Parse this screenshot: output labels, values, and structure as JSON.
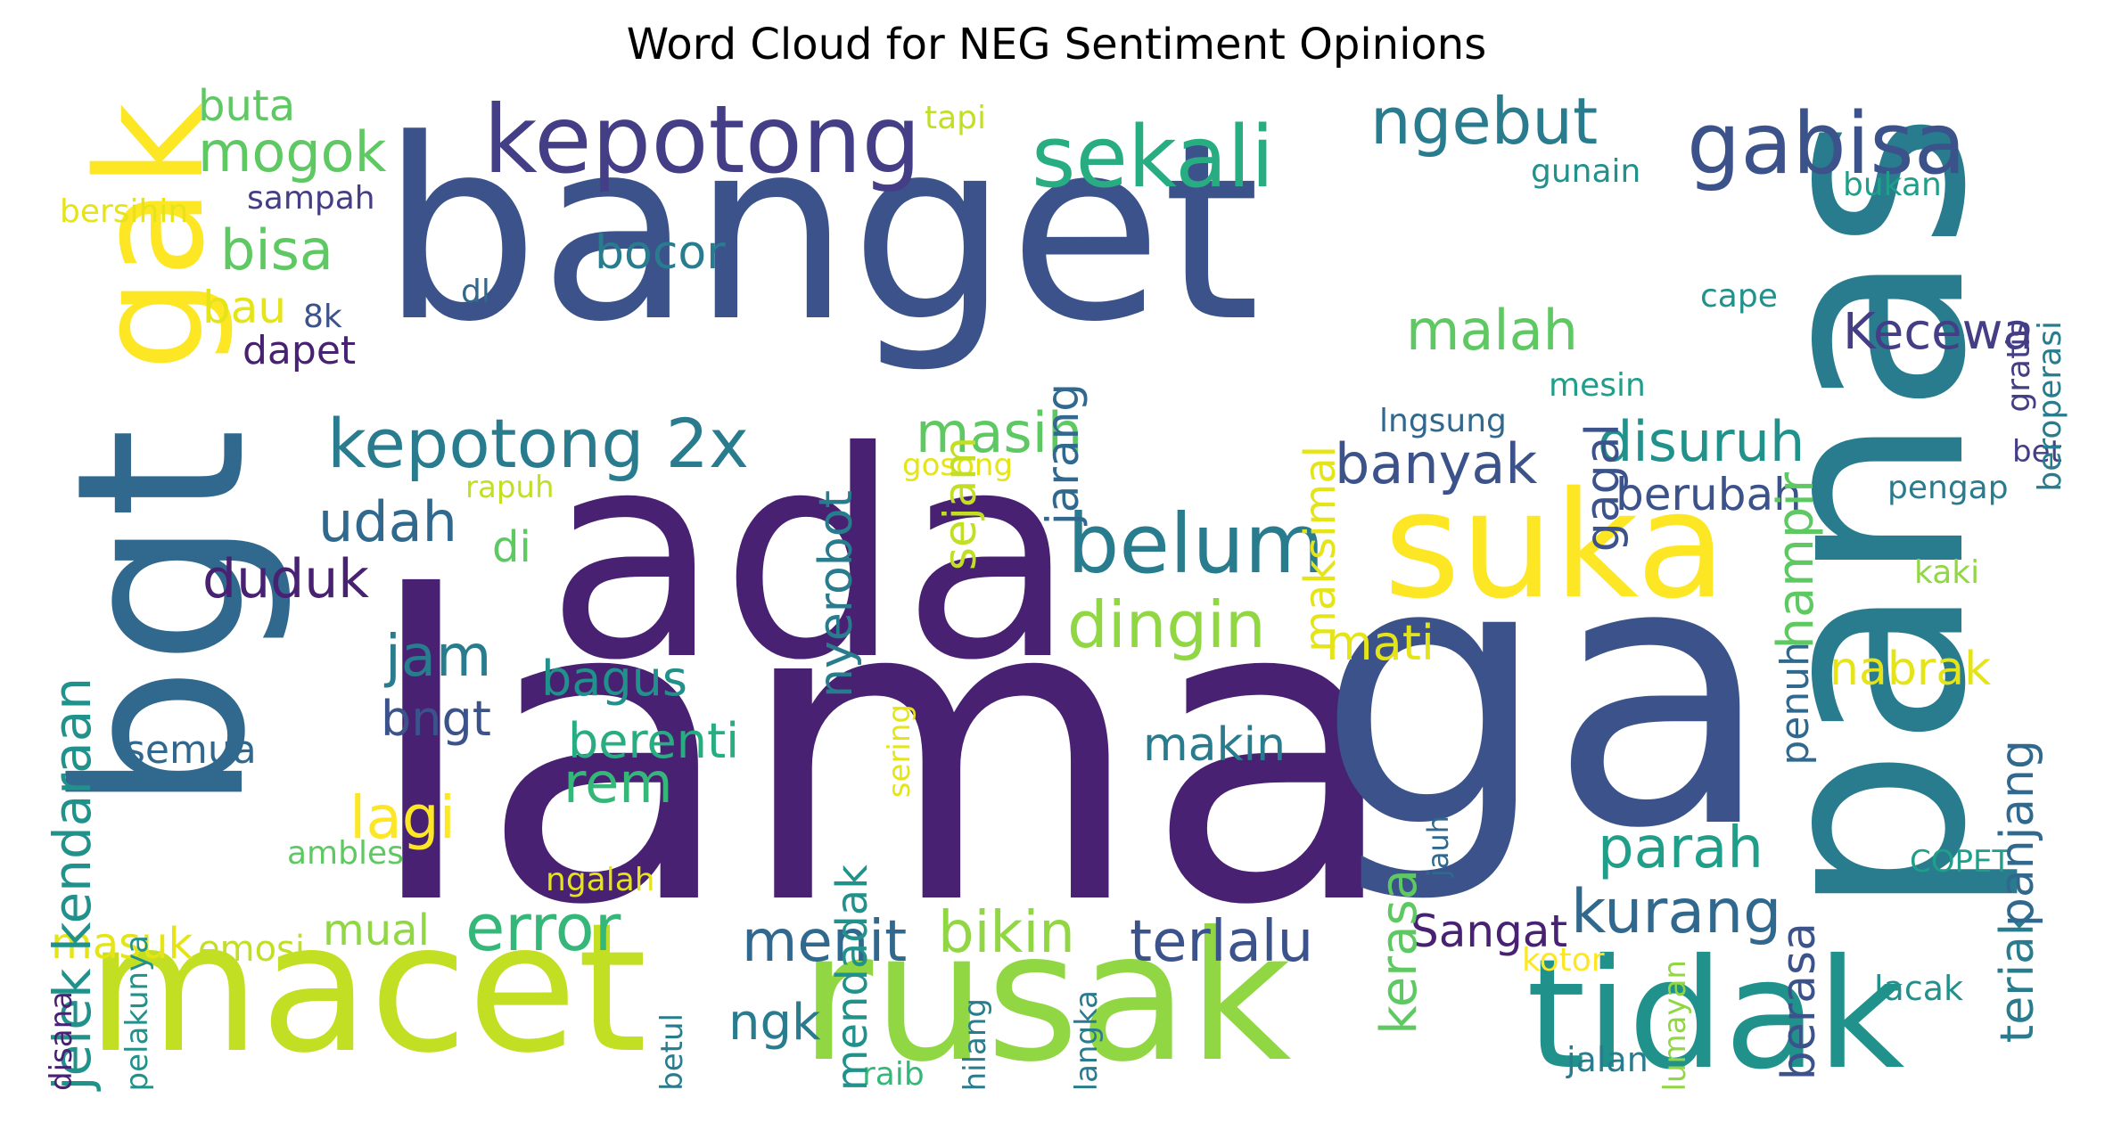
{
  "title": "Word Cloud for NEG Sentiment Opinions",
  "colors": {
    "c1": "#482173",
    "c2": "#433e85",
    "c3": "#3b528b",
    "c4": "#31688e",
    "c5": "#287c8e",
    "c6": "#21918c",
    "c7": "#1f9e89",
    "c8": "#27ad81",
    "c9": "#35b779",
    "c10": "#5ec962",
    "c11": "#90d743",
    "c12": "#c2df23",
    "c13": "#e5e419",
    "c14": "#fde725"
  },
  "words": [
    {
      "text": "banget",
      "color": "c3"
    },
    {
      "text": "lama",
      "color": "c1"
    },
    {
      "text": "ada",
      "color": "c1"
    },
    {
      "text": "ga",
      "color": "c3"
    },
    {
      "text": "panas",
      "color": "c5"
    },
    {
      "text": "bgt",
      "color": "c4"
    },
    {
      "text": "macet",
      "color": "c12"
    },
    {
      "text": "rusak",
      "color": "c11"
    },
    {
      "text": "tidak",
      "color": "c6"
    },
    {
      "text": "suka",
      "color": "c14"
    },
    {
      "text": "gak",
      "color": "c14"
    },
    {
      "text": "kepotong",
      "color": "c2"
    },
    {
      "text": "sekali",
      "color": "c8"
    },
    {
      "text": "gabisa",
      "color": "c3"
    },
    {
      "text": "ngebut",
      "color": "c5"
    },
    {
      "text": "mogok",
      "color": "c10"
    },
    {
      "text": "buta",
      "color": "c10"
    },
    {
      "text": "tapi",
      "color": "c12"
    },
    {
      "text": "bersihin",
      "color": "c13"
    },
    {
      "text": "sampah",
      "color": "c2"
    },
    {
      "text": "bisa",
      "color": "c10"
    },
    {
      "text": "bocor",
      "color": "c5"
    },
    {
      "text": "bau",
      "color": "c13"
    },
    {
      "text": "8k",
      "color": "c3"
    },
    {
      "text": "dl",
      "color": "c4"
    },
    {
      "text": "dapet",
      "color": "c1"
    },
    {
      "text": "kepotong 2x",
      "color": "c5"
    },
    {
      "text": "belum",
      "color": "c5"
    },
    {
      "text": "banyak",
      "color": "c3"
    },
    {
      "text": "malah",
      "color": "c10"
    },
    {
      "text": "Kecewa",
      "color": "c2"
    },
    {
      "text": "disuruh",
      "color": "c6"
    },
    {
      "text": "berubah",
      "color": "c3"
    },
    {
      "text": "masih",
      "color": "c10"
    },
    {
      "text": "udah",
      "color": "c4"
    },
    {
      "text": "di",
      "color": "c10"
    },
    {
      "text": "duduk",
      "color": "c1"
    },
    {
      "text": "dingin",
      "color": "c11"
    },
    {
      "text": "jam",
      "color": "c5"
    },
    {
      "text": "bagus",
      "color": "c6"
    },
    {
      "text": "mati",
      "color": "c13"
    },
    {
      "text": "bngt",
      "color": "c3"
    },
    {
      "text": "berenti",
      "color": "c8"
    },
    {
      "text": "semua",
      "color": "c4"
    },
    {
      "text": "rem",
      "color": "c9"
    },
    {
      "text": "lagi",
      "color": "c14"
    },
    {
      "text": "makin",
      "color": "c5"
    },
    {
      "text": "nabrak",
      "color": "c13"
    },
    {
      "text": "parah",
      "color": "c7"
    },
    {
      "text": "error",
      "color": "c9"
    },
    {
      "text": "menit",
      "color": "c4"
    },
    {
      "text": "bikin",
      "color": "c11"
    },
    {
      "text": "terlalu",
      "color": "c3"
    },
    {
      "text": "Sangat",
      "color": "c1"
    },
    {
      "text": "kurang",
      "color": "c4"
    },
    {
      "text": "mual",
      "color": "c11"
    },
    {
      "text": "masuk",
      "color": "c13"
    },
    {
      "text": "emosi",
      "color": "c12"
    },
    {
      "text": "ngk",
      "color": "c5"
    },
    {
      "text": "ambles",
      "color": "c10"
    },
    {
      "text": "ngalah",
      "color": "c13"
    },
    {
      "text": "raib",
      "color": "c9"
    },
    {
      "text": "kotor",
      "color": "c14"
    },
    {
      "text": "jalan",
      "color": "c5"
    },
    {
      "text": "lacak",
      "color": "c6"
    },
    {
      "text": "COPET",
      "color": "c7"
    },
    {
      "text": "kaki",
      "color": "c11"
    },
    {
      "text": "bet",
      "color": "c2"
    },
    {
      "text": "pengap",
      "color": "c5"
    },
    {
      "text": "cape",
      "color": "c6"
    },
    {
      "text": "mesin",
      "color": "c7"
    },
    {
      "text": "lngsung",
      "color": "c4"
    },
    {
      "text": "gunain",
      "color": "c6"
    },
    {
      "text": "bukan",
      "color": "c7"
    },
    {
      "text": "rapuh",
      "color": "c12"
    },
    {
      "text": "gosong",
      "color": "c13"
    },
    {
      "text": "jelek kendaraan",
      "color": "c6"
    },
    {
      "text": "pelakunya",
      "color": "c6"
    },
    {
      "text": "disana",
      "color": "c1"
    },
    {
      "text": "betul",
      "color": "c5"
    },
    {
      "text": "sering",
      "color": "c13"
    },
    {
      "text": "mendadak",
      "color": "c6"
    },
    {
      "text": "nyerobot",
      "color": "c5"
    },
    {
      "text": "sejam",
      "color": "c12"
    },
    {
      "text": "jarang",
      "color": "c4"
    },
    {
      "text": "maksimal",
      "color": "c13"
    },
    {
      "text": "gagal",
      "color": "c3"
    },
    {
      "text": "hampir",
      "color": "c10"
    },
    {
      "text": "kerasa",
      "color": "c10"
    },
    {
      "text": "penuh",
      "color": "c4"
    },
    {
      "text": "berasa",
      "color": "c3"
    },
    {
      "text": "teriak",
      "color": "c5"
    },
    {
      "text": "panjang",
      "color": "c4"
    },
    {
      "text": "gratis",
      "color": "c2"
    },
    {
      "text": "beroperasi",
      "color": "c5"
    },
    {
      "text": "hilang",
      "color": "c5"
    },
    {
      "text": "langka",
      "color": "c5"
    },
    {
      "text": "jauh",
      "color": "c4"
    },
    {
      "text": "lumayan",
      "color": "c11"
    }
  ]
}
